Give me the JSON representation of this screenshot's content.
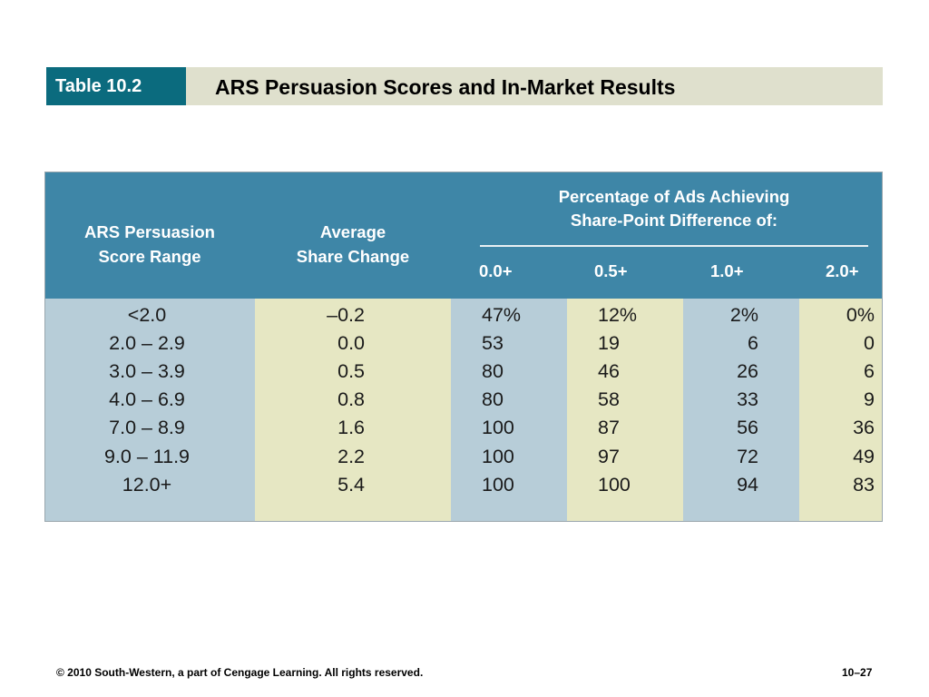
{
  "slide": {
    "table_tag": "Table 10.2",
    "title": "ARS Persuasion Scores and In-Market Results"
  },
  "table": {
    "header": {
      "col1": [
        "ARS Persuasion",
        "Score Range"
      ],
      "col2": [
        "Average",
        "Share Change"
      ],
      "group": [
        "Percentage of Ads Achieving",
        "Share-Point Difference of:"
      ],
      "subcols": [
        "0.0+",
        "0.5+",
        "1.0+",
        "2.0+"
      ]
    },
    "rows": [
      {
        "range": "<2.0",
        "avg": "–0.2",
        "p00": "47%",
        "p05": "12%",
        "p10": "2%",
        "p20": "0%"
      },
      {
        "range": "2.0 – 2.9",
        "avg": "0.0",
        "p00": "53",
        "p05": "19",
        "p10": "6",
        "p20": "0"
      },
      {
        "range": "3.0 – 3.9",
        "avg": "0.5",
        "p00": "80",
        "p05": "46",
        "p10": "26",
        "p20": "6"
      },
      {
        "range": "4.0 – 6.9",
        "avg": "0.8",
        "p00": "80",
        "p05": "58",
        "p10": "33",
        "p20": "9"
      },
      {
        "range": "7.0 – 8.9",
        "avg": "1.6",
        "p00": "100",
        "p05": "87",
        "p10": "56",
        "p20": "36"
      },
      {
        "range": "9.0 – 11.9",
        "avg": "2.2",
        "p00": "100",
        "p05": "97",
        "p10": "72",
        "p20": "49"
      },
      {
        "range": "12.0+",
        "avg": "5.4",
        "p00": "100",
        "p05": "100",
        "p10": "94",
        "p20": "83"
      }
    ]
  },
  "footer": {
    "copyright": "© 2010 South-Western, a part of Cengage Learning. All rights reserved.",
    "page": "10–27"
  },
  "colors": {
    "tag_bg": "#0b6b7e",
    "title_bar_bg": "#dfe0cd",
    "header_bg": "#3e86a7",
    "blue_col": "#b7cdd8",
    "yellow_col": "#e6e7c3"
  }
}
